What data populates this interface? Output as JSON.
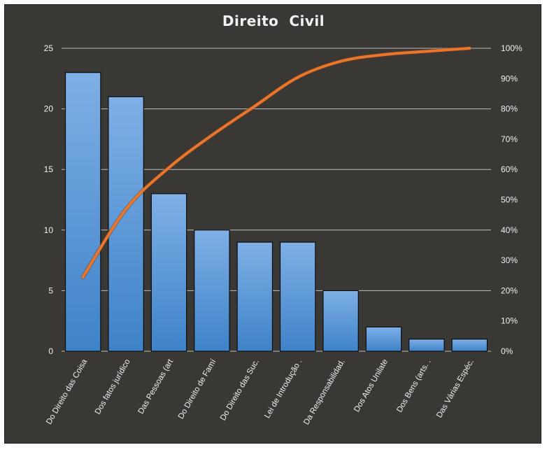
{
  "chart_data": {
    "type": "bar",
    "title": "Direito  Civil",
    "categories": [
      "Do Direito das Coisa",
      "Dos fatos jurídico",
      "Das Pessoas (art",
      "Do Direito de Famí",
      "Do Direito das Suc.",
      "Lei de Introdução .",
      "Da Responsabilidad.",
      "Dos Atos Unilate",
      "Dos Bens (arts. .",
      "Das Várias Espéc."
    ],
    "series": [
      {
        "type": "bar",
        "values": [
          23,
          21,
          13,
          10,
          9,
          9,
          5,
          2,
          1,
          1
        ]
      },
      {
        "type": "line",
        "axis": "right",
        "values": [
          24.5,
          46.9,
          60.6,
          71.3,
          80.9,
          90.4,
          95.7,
          97.9,
          99.0,
          100
        ]
      }
    ],
    "ylim": [
      0,
      25
    ],
    "yticks": [
      "0",
      "5",
      "10",
      "15",
      "20",
      "25"
    ],
    "y2lim": [
      0,
      100
    ],
    "y2ticks": [
      "0%",
      "10%",
      "20%",
      "30%",
      "40%",
      "50%",
      "60%",
      "70%",
      "80%",
      "90%",
      "100%"
    ],
    "grid": true,
    "legend": "none",
    "colors": {
      "background": "#3a3835",
      "bar_top": "#7fb0e6",
      "bar_bottom": "#3e82c8",
      "bar_border": "#0d0d0d",
      "line": "#e8762d",
      "grid": "#bdbdbd",
      "text": "#f0f0f0"
    }
  }
}
